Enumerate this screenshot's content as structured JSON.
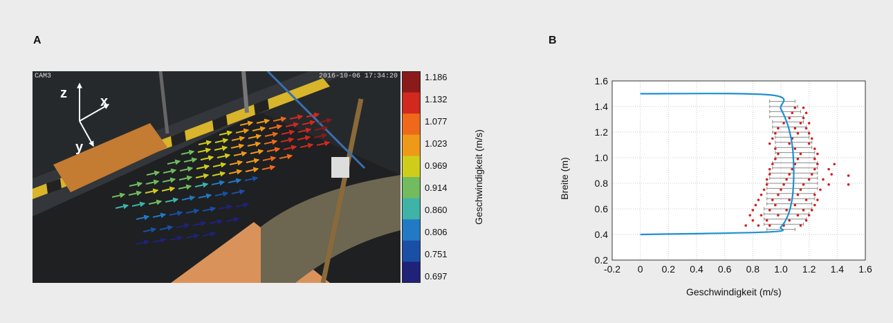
{
  "panel_a": {
    "label": "A",
    "camera_label": "CAM3",
    "timestamp": "2016-10-06 17:34:20",
    "axes_labels": [
      "z",
      "x",
      "y"
    ],
    "colorbar": {
      "title": "Geschwindigkeit (m/s)",
      "ticks": [
        "1.186",
        "1.132",
        "1.077",
        "1.023",
        "0.969",
        "0.914",
        "0.860",
        "0.806",
        "0.751",
        "0.697"
      ],
      "colors": [
        "#8b1a1a",
        "#d2281e",
        "#ee6a1a",
        "#ee9a18",
        "#cfcd1a",
        "#72bb5e",
        "#3fb3a8",
        "#2279c4",
        "#1a4fa6",
        "#1f2278"
      ]
    }
  },
  "panel_b": {
    "label": "B"
  },
  "chart_data": {
    "type": "scatter",
    "title": "",
    "xlabel": "Geschwindigkeit (m/s)",
    "ylabel": "Breite (m)",
    "xlim": [
      -0.2,
      1.6
    ],
    "ylim": [
      0.2,
      1.6
    ],
    "xticks": [
      "-0.2",
      "0",
      "0.2",
      "0.4",
      "0.6",
      "0.8",
      "1.0",
      "1.2",
      "1.4",
      "1.6"
    ],
    "yticks": [
      "0.2",
      "0.4",
      "0.6",
      "0.8",
      "1.0",
      "1.2",
      "1.4",
      "1.6"
    ],
    "grid": true,
    "profile_color": "#1c8fd0",
    "point_color": "#d42020",
    "profile": {
      "x": [
        0,
        0.92,
        1.0,
        1.05,
        1.08,
        1.09,
        1.09,
        1.08,
        1.05,
        1.0,
        0.93,
        0
      ],
      "y": [
        0.4,
        0.42,
        0.46,
        0.55,
        0.68,
        0.82,
        0.95,
        1.1,
        1.25,
        1.38,
        1.49,
        1.5
      ]
    },
    "errorbars": [
      {
        "y": 0.44,
        "mean": 1.0,
        "min": 0.9,
        "max": 1.1
      },
      {
        "y": 0.48,
        "mean": 1.02,
        "min": 0.88,
        "max": 1.16
      },
      {
        "y": 0.52,
        "mean": 1.04,
        "min": 0.88,
        "max": 1.18
      },
      {
        "y": 0.56,
        "mean": 1.05,
        "min": 0.88,
        "max": 1.2
      },
      {
        "y": 0.6,
        "mean": 1.06,
        "min": 0.88,
        "max": 1.22
      },
      {
        "y": 0.64,
        "mean": 1.07,
        "min": 0.9,
        "max": 1.22
      },
      {
        "y": 0.68,
        "mean": 1.08,
        "min": 0.9,
        "max": 1.24
      },
      {
        "y": 0.72,
        "mean": 1.08,
        "min": 0.9,
        "max": 1.24
      },
      {
        "y": 0.76,
        "mean": 1.09,
        "min": 0.9,
        "max": 1.26
      },
      {
        "y": 0.8,
        "mean": 1.09,
        "min": 0.9,
        "max": 1.26
      },
      {
        "y": 0.84,
        "mean": 1.09,
        "min": 0.92,
        "max": 1.26
      },
      {
        "y": 0.88,
        "mean": 1.09,
        "min": 0.92,
        "max": 1.26
      },
      {
        "y": 0.92,
        "mean": 1.09,
        "min": 0.94,
        "max": 1.26
      },
      {
        "y": 0.96,
        "mean": 1.09,
        "min": 0.94,
        "max": 1.26
      },
      {
        "y": 1.0,
        "mean": 1.09,
        "min": 0.96,
        "max": 1.24
      },
      {
        "y": 1.04,
        "mean": 1.09,
        "min": 0.96,
        "max": 1.24
      },
      {
        "y": 1.08,
        "mean": 1.08,
        "min": 0.96,
        "max": 1.22
      },
      {
        "y": 1.12,
        "mean": 1.08,
        "min": 0.96,
        "max": 1.22
      },
      {
        "y": 1.16,
        "mean": 1.07,
        "min": 0.96,
        "max": 1.2
      },
      {
        "y": 1.2,
        "mean": 1.06,
        "min": 0.94,
        "max": 1.2
      },
      {
        "y": 1.24,
        "mean": 1.05,
        "min": 0.94,
        "max": 1.18
      },
      {
        "y": 1.28,
        "mean": 1.04,
        "min": 0.94,
        "max": 1.16
      },
      {
        "y": 1.32,
        "mean": 1.03,
        "min": 0.92,
        "max": 1.16
      },
      {
        "y": 1.36,
        "mean": 1.02,
        "min": 0.92,
        "max": 1.14
      },
      {
        "y": 1.4,
        "mean": 1.01,
        "min": 0.92,
        "max": 1.12
      },
      {
        "y": 1.44,
        "mean": 1.0,
        "min": 0.92,
        "max": 1.1
      }
    ],
    "points": [
      [
        0.75,
        0.47
      ],
      [
        0.84,
        0.47
      ],
      [
        0.92,
        0.47
      ],
      [
        1.02,
        0.47
      ],
      [
        1.14,
        0.47
      ],
      [
        0.8,
        0.51
      ],
      [
        0.9,
        0.51
      ],
      [
        1.06,
        0.51
      ],
      [
        1.18,
        0.51
      ],
      [
        0.78,
        0.55
      ],
      [
        0.86,
        0.55
      ],
      [
        0.98,
        0.55
      ],
      [
        1.12,
        0.55
      ],
      [
        1.2,
        0.55
      ],
      [
        0.8,
        0.59
      ],
      [
        0.92,
        0.59
      ],
      [
        1.04,
        0.59
      ],
      [
        1.16,
        0.59
      ],
      [
        1.22,
        0.59
      ],
      [
        0.82,
        0.63
      ],
      [
        0.96,
        0.63
      ],
      [
        1.1,
        0.63
      ],
      [
        1.24,
        0.63
      ],
      [
        0.84,
        0.67
      ],
      [
        0.94,
        0.67
      ],
      [
        1.06,
        0.67
      ],
      [
        1.18,
        0.67
      ],
      [
        1.26,
        0.67
      ],
      [
        0.86,
        0.71
      ],
      [
        0.98,
        0.71
      ],
      [
        1.12,
        0.71
      ],
      [
        1.24,
        0.71
      ],
      [
        0.88,
        0.75
      ],
      [
        1.0,
        0.75
      ],
      [
        1.14,
        0.75
      ],
      [
        1.28,
        0.75
      ],
      [
        0.9,
        0.79
      ],
      [
        1.02,
        0.79
      ],
      [
        1.16,
        0.79
      ],
      [
        1.34,
        0.79
      ],
      [
        1.48,
        0.79
      ],
      [
        0.9,
        0.83
      ],
      [
        1.04,
        0.83
      ],
      [
        1.2,
        0.83
      ],
      [
        1.3,
        0.83
      ],
      [
        1.48,
        0.86
      ],
      [
        0.92,
        0.87
      ],
      [
        1.06,
        0.87
      ],
      [
        1.22,
        0.87
      ],
      [
        1.36,
        0.87
      ],
      [
        0.92,
        0.91
      ],
      [
        1.08,
        0.91
      ],
      [
        1.24,
        0.91
      ],
      [
        1.34,
        0.91
      ],
      [
        0.94,
        0.95
      ],
      [
        1.1,
        0.95
      ],
      [
        1.26,
        0.95
      ],
      [
        1.38,
        0.95
      ],
      [
        0.96,
        0.99
      ],
      [
        1.12,
        0.99
      ],
      [
        1.24,
        0.99
      ],
      [
        0.98,
        1.03
      ],
      [
        1.14,
        1.03
      ],
      [
        1.26,
        1.03
      ],
      [
        0.96,
        1.07
      ],
      [
        1.1,
        1.07
      ],
      [
        1.24,
        1.07
      ],
      [
        0.92,
        1.11
      ],
      [
        1.06,
        1.11
      ],
      [
        1.2,
        1.11
      ],
      [
        0.94,
        1.15
      ],
      [
        1.08,
        1.15
      ],
      [
        1.22,
        1.15
      ],
      [
        0.96,
        1.19
      ],
      [
        1.12,
        1.19
      ],
      [
        1.2,
        1.19
      ],
      [
        0.98,
        1.23
      ],
      [
        1.1,
        1.23
      ],
      [
        1.18,
        1.23
      ],
      [
        1.02,
        1.27
      ],
      [
        1.14,
        1.27
      ],
      [
        1.2,
        1.27
      ],
      [
        1.06,
        1.31
      ],
      [
        1.16,
        1.31
      ],
      [
        1.08,
        1.35
      ],
      [
        1.18,
        1.35
      ],
      [
        1.1,
        1.39
      ],
      [
        1.16,
        1.39
      ]
    ]
  }
}
